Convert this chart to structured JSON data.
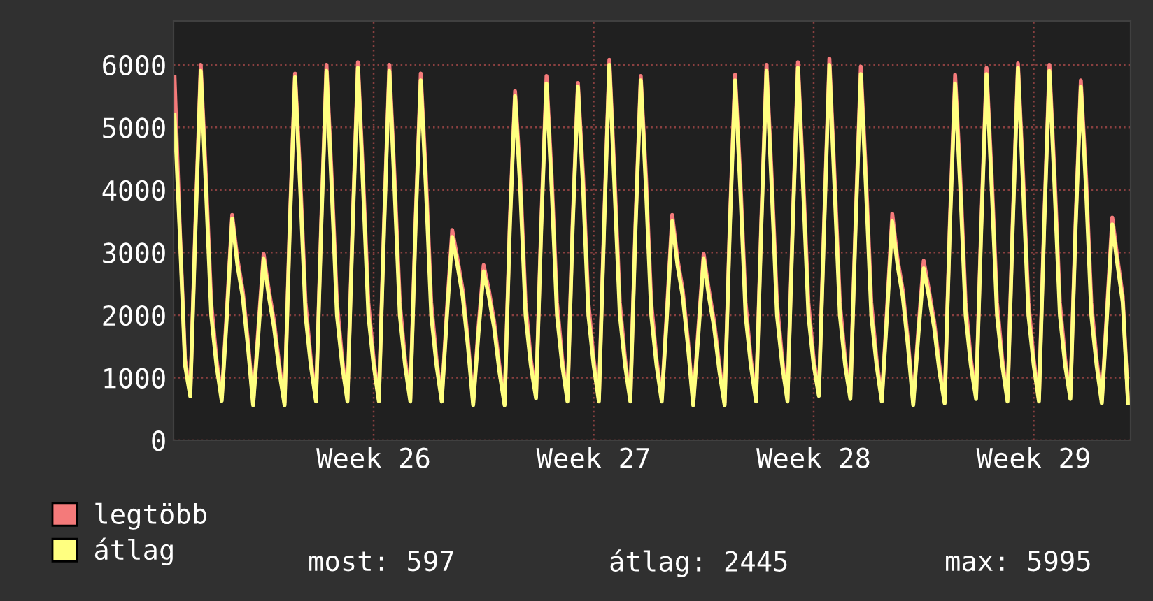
{
  "chart_data": {
    "type": "line",
    "categories": [
      null,
      null,
      null,
      null,
      null,
      null,
      null,
      null,
      null,
      null,
      null,
      null,
      null,
      null,
      null,
      null,
      null,
      null,
      null,
      null,
      null,
      null,
      null,
      null,
      null,
      null,
      null,
      null,
      null,
      null,
      null,
      null,
      null,
      null,
      null,
      null,
      null,
      null,
      "Week 26",
      null,
      null,
      null,
      null,
      null,
      null,
      null,
      null,
      null,
      null,
      null,
      null,
      null,
      null,
      null,
      null,
      null,
      null,
      null,
      null,
      null,
      null,
      null,
      null,
      null,
      null,
      null,
      null,
      null,
      null,
      null,
      null,
      null,
      null,
      null,
      null,
      null,
      null,
      null,
      null,
      null,
      "Week 27",
      null,
      null,
      null,
      null,
      null,
      null,
      null,
      null,
      null,
      null,
      null,
      null,
      null,
      null,
      null,
      null,
      null,
      null,
      null,
      null,
      null,
      null,
      null,
      null,
      null,
      null,
      null,
      null,
      null,
      null,
      null,
      null,
      null,
      null,
      null,
      null,
      null,
      null,
      null,
      null,
      null,
      "Week 28",
      null,
      null,
      null,
      null,
      null,
      null,
      null,
      null,
      null,
      null,
      null,
      null,
      null,
      null,
      null,
      null,
      null,
      null,
      null,
      null,
      null,
      null,
      null,
      null,
      null,
      null,
      null,
      null,
      null,
      null,
      null,
      null,
      null,
      null,
      null,
      null,
      null,
      null,
      null,
      null,
      null,
      "Week 29",
      null,
      null,
      null,
      null,
      null,
      null,
      null,
      null,
      null,
      null,
      null,
      null,
      null,
      null,
      null,
      null,
      null,
      null
    ],
    "series": [
      {
        "name": "legtöbb",
        "color": "#f47a7a",
        "values": [
          5800,
          3400,
          1300,
          750,
          3500,
          6000,
          4200,
          2200,
          1300,
          680,
          2100,
          3600,
          2900,
          2400,
          1600,
          600,
          1800,
          2980,
          2400,
          1900,
          1200,
          600,
          3500,
          5860,
          4200,
          2200,
          1300,
          660,
          3500,
          6000,
          4200,
          2200,
          1300,
          660,
          3500,
          6040,
          4200,
          2200,
          1300,
          660,
          3500,
          6000,
          4200,
          2200,
          1300,
          660,
          3500,
          5860,
          4200,
          2200,
          1300,
          660,
          2100,
          3360,
          2900,
          2400,
          1600,
          600,
          1800,
          2800,
          2400,
          1900,
          1200,
          600,
          3500,
          5580,
          4200,
          2200,
          1300,
          710,
          3500,
          5820,
          4200,
          2200,
          1300,
          660,
          3500,
          5710,
          4200,
          2200,
          1300,
          660,
          3500,
          6080,
          4200,
          2200,
          1300,
          660,
          3500,
          5820,
          4200,
          2200,
          1300,
          660,
          2100,
          3600,
          2900,
          2400,
          1600,
          600,
          1800,
          2980,
          2400,
          1900,
          1200,
          600,
          3500,
          5840,
          4200,
          2200,
          1300,
          660,
          3500,
          6000,
          4200,
          2200,
          1300,
          660,
          3500,
          6040,
          4200,
          2200,
          1300,
          750,
          3500,
          6100,
          4200,
          2200,
          1300,
          700,
          3500,
          5970,
          4200,
          2200,
          1300,
          660,
          2100,
          3620,
          2900,
          2400,
          1600,
          600,
          1800,
          2870,
          2400,
          1900,
          1200,
          630,
          3500,
          5840,
          4200,
          2200,
          1300,
          700,
          3500,
          5950,
          4200,
          2200,
          1300,
          660,
          3500,
          6020,
          4200,
          2200,
          1300,
          660,
          3500,
          6000,
          4200,
          2200,
          1300,
          700,
          3500,
          5750,
          4200,
          2200,
          1300,
          630,
          2100,
          3560,
          2900,
          2300,
          620
        ]
      },
      {
        "name": "átlag",
        "color": "#ffff80",
        "values": [
          5200,
          3300,
          1200,
          700,
          3400,
          5900,
          4000,
          2000,
          1200,
          630,
          2000,
          3540,
          2800,
          2300,
          1500,
          560,
          1700,
          2900,
          2300,
          1800,
          1100,
          560,
          3400,
          5800,
          4000,
          2000,
          1200,
          620,
          3400,
          5900,
          4000,
          2000,
          1200,
          620,
          3400,
          5950,
          4000,
          2000,
          1200,
          620,
          3400,
          5900,
          4000,
          2000,
          1200,
          620,
          3400,
          5750,
          4000,
          2000,
          1200,
          620,
          2000,
          3250,
          2800,
          2300,
          1500,
          560,
          1700,
          2700,
          2300,
          1800,
          1100,
          560,
          3400,
          5500,
          4000,
          2000,
          1200,
          670,
          3400,
          5700,
          4000,
          2000,
          1200,
          620,
          3400,
          5650,
          4000,
          2000,
          1200,
          620,
          3400,
          6000,
          4000,
          2000,
          1200,
          620,
          3400,
          5750,
          4000,
          2000,
          1200,
          620,
          2000,
          3500,
          2800,
          2300,
          1500,
          560,
          1700,
          2900,
          2300,
          1800,
          1100,
          560,
          3400,
          5750,
          4000,
          2000,
          1200,
          620,
          3400,
          5900,
          4000,
          2000,
          1200,
          620,
          3400,
          5950,
          4000,
          2000,
          1200,
          710,
          3400,
          5995,
          4000,
          2000,
          1200,
          660,
          3400,
          5850,
          4000,
          2000,
          1200,
          620,
          2000,
          3500,
          2800,
          2300,
          1500,
          560,
          1700,
          2750,
          2300,
          1800,
          1100,
          590,
          3400,
          5700,
          4000,
          2000,
          1200,
          660,
          3400,
          5850,
          4000,
          2000,
          1200,
          620,
          3400,
          5950,
          4000,
          2000,
          1200,
          620,
          3400,
          5900,
          4000,
          2000,
          1200,
          660,
          3400,
          5650,
          4000,
          2000,
          1200,
          590,
          2000,
          3450,
          2800,
          2200,
          597
        ]
      }
    ],
    "ylim": [
      0,
      6700
    ],
    "yticks": [
      0,
      1000,
      2000,
      3000,
      4000,
      5000,
      6000
    ],
    "grid": true,
    "legend": "bottom left",
    "annotations": [
      "most: 597",
      "átlag: 2445",
      "max: 5995"
    ]
  }
}
